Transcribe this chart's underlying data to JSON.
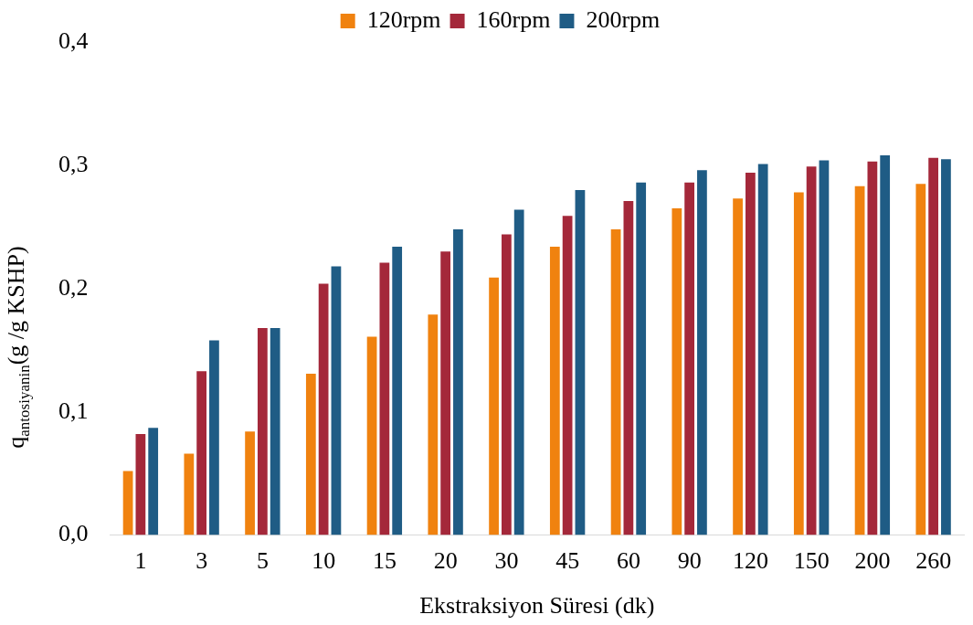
{
  "chart_data": {
    "type": "bar",
    "xlabel": "Ekstraksiyon Süresi (dk)",
    "ylabel": "q$_{antosiyanin}$(g /g KSHP)",
    "categories": [
      "1",
      "3",
      "5",
      "10",
      "15",
      "20",
      "30",
      "45",
      "60",
      "90",
      "120",
      "150",
      "200",
      "260"
    ],
    "series": [
      {
        "name": "120rpm",
        "color": "#f0820f",
        "values": [
          0.052,
          0.066,
          0.084,
          0.131,
          0.161,
          0.179,
          0.209,
          0.234,
          0.248,
          0.265,
          0.273,
          0.278,
          0.283,
          0.285
        ]
      },
      {
        "name": "160rpm",
        "color": "#a4283a",
        "values": [
          0.082,
          0.133,
          0.168,
          0.204,
          0.221,
          0.23,
          0.244,
          0.259,
          0.271,
          0.286,
          0.294,
          0.299,
          0.303,
          0.306
        ]
      },
      {
        "name": "200rpm",
        "color": "#1f5c85",
        "values": [
          0.087,
          0.158,
          0.168,
          0.218,
          0.234,
          0.248,
          0.264,
          0.28,
          0.286,
          0.296,
          0.301,
          0.304,
          0.308,
          0.305
        ]
      }
    ],
    "ylim": [
      0,
      0.4
    ],
    "yticks": [
      {
        "value": 0,
        "label": "0,0"
      },
      {
        "value": 0.1,
        "label": "0,1"
      },
      {
        "value": 0.2,
        "label": "0,2"
      },
      {
        "value": 0.3,
        "label": "0,3"
      },
      {
        "value": 0.4,
        "label": "0,4"
      }
    ],
    "grid": false,
    "legend": "top"
  }
}
